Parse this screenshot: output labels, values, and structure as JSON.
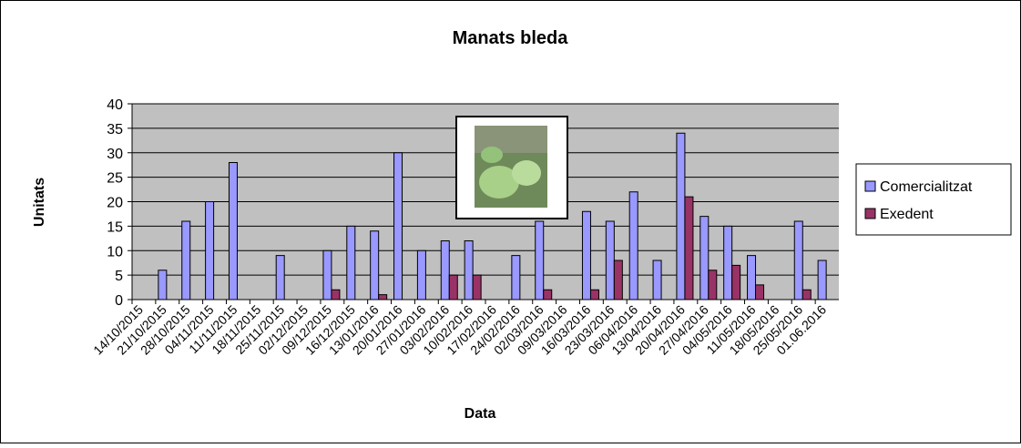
{
  "chart_data": {
    "type": "bar",
    "title": "Manats bleda",
    "x_label": "Data",
    "y_label": "Unitats",
    "categories": [
      "14/10/2015",
      "21/10/2015",
      "28/10/2015",
      "04/11/2015",
      "11/11/2015",
      "18/11/2015",
      "25/11/2015",
      "02/12/2015",
      "09/12/2015",
      "16/12/2015",
      "13/01/2016",
      "20/01/2016",
      "27/01/2016",
      "03/02/2016",
      "10/02/2016",
      "17/02/2016",
      "24/02/2016",
      "02/03/2016",
      "09/03/2016",
      "16/03/2016",
      "23/03/2016",
      "06/04/2016",
      "13/04/2016",
      "20/04/2016",
      "27/04/2016",
      "04/05/2016",
      "11/05/2016",
      "18/05/2016",
      "25/05/2016",
      "01.06.2016"
    ],
    "series": [
      {
        "name": "Comercialitzat",
        "color": "#9999ff",
        "values": [
          null,
          6,
          16,
          20,
          28,
          null,
          9,
          null,
          10,
          15,
          14,
          30,
          10,
          12,
          12,
          null,
          9,
          16,
          null,
          18,
          16,
          22,
          8,
          34,
          17,
          15,
          9,
          null,
          16,
          8
        ]
      },
      {
        "name": "Exedent",
        "color": "#993366",
        "values": [
          null,
          null,
          null,
          null,
          null,
          null,
          null,
          null,
          2,
          null,
          1,
          null,
          null,
          5,
          5,
          null,
          null,
          2,
          null,
          2,
          8,
          null,
          null,
          21,
          6,
          7,
          3,
          null,
          2,
          null
        ]
      }
    ],
    "ylim": [
      0,
      40
    ],
    "yticks": [
      0,
      5,
      10,
      15,
      20,
      25,
      30,
      35,
      40
    ],
    "grid": true,
    "legend": "right"
  }
}
